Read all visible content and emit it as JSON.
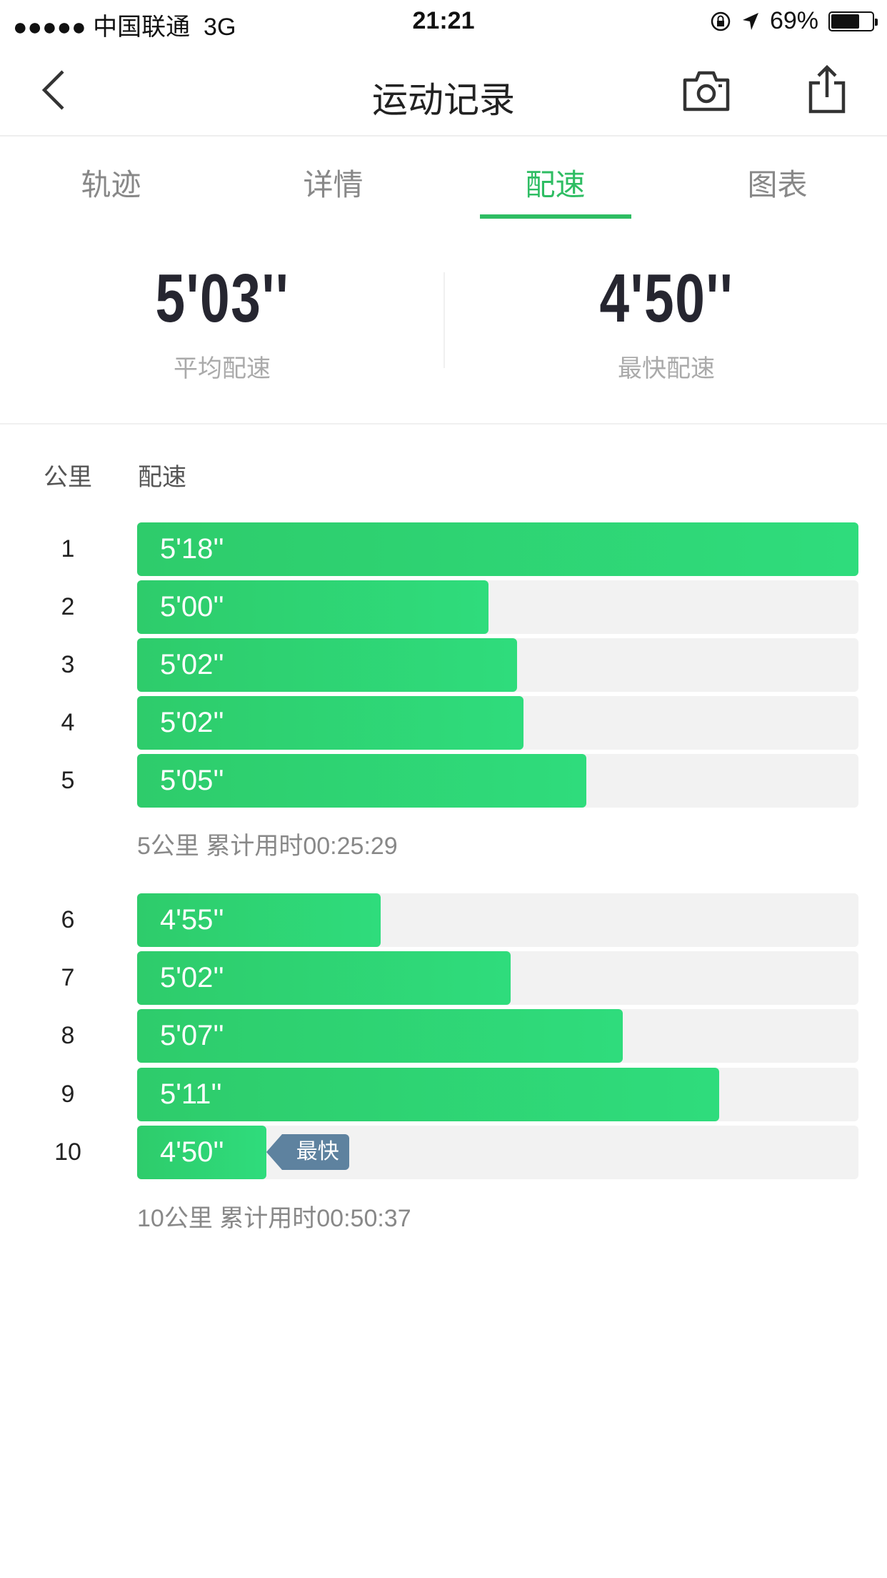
{
  "status_bar": {
    "signal": "●●●●●",
    "carrier": "中国联通",
    "network": "3G",
    "time": "21:21",
    "battery_percent": "69%",
    "battery_level": 0.69
  },
  "nav": {
    "title": "运动记录",
    "back_icon": "chevron-left-icon",
    "camera_icon": "camera-icon",
    "share_icon": "share-icon"
  },
  "tabs": [
    {
      "label": "轨迹"
    },
    {
      "label": "详情"
    },
    {
      "label": "配速",
      "active": true
    },
    {
      "label": "图表"
    }
  ],
  "stats": {
    "avg_value": "5'03''",
    "avg_label": "平均配速",
    "fast_value": "4'50''",
    "fast_label": "最快配速"
  },
  "table": {
    "col_km": "公里",
    "col_pace": "配速",
    "rows": [
      {
        "km": "1",
        "pace": "5'18''",
        "fill": 1.0
      },
      {
        "km": "2",
        "pace": "5'00''",
        "fill": 0.487
      },
      {
        "km": "3",
        "pace": "5'02''",
        "fill": 0.527
      },
      {
        "km": "4",
        "pace": "5'02''",
        "fill": 0.536
      },
      {
        "km": "5",
        "pace": "5'05''",
        "fill": 0.623
      },
      {
        "km": "6",
        "pace": "4'55''",
        "fill": 0.338
      },
      {
        "km": "7",
        "pace": "5'02''",
        "fill": 0.518
      },
      {
        "km": "8",
        "pace": "5'07''",
        "fill": 0.673
      },
      {
        "km": "9",
        "pace": "5'11''",
        "fill": 0.807
      },
      {
        "km": "10",
        "pace": "4'50''",
        "fill": 0.179,
        "badge": "最快"
      }
    ],
    "summaries": [
      "5公里 累计用时00:25:29",
      "10公里 累计用时00:50:37"
    ]
  },
  "colors": {
    "accent": "#2ebd63",
    "bar": "#2ecc6b",
    "badge": "#5e829f"
  }
}
